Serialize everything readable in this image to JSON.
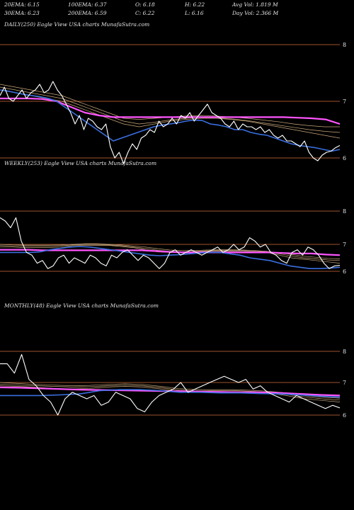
{
  "header": {
    "row1": [
      "20EMA: 6.15",
      "100EMA: 6.37",
      "O: 6.18",
      "H: 6.22",
      "Avg Vol: 1.819 M"
    ],
    "row2": [
      "30EMA: 6.23",
      "200EMA: 6.59",
      "C: 6.22",
      "L: 6.16",
      "Day Vol: 2.366  M"
    ]
  },
  "colors": {
    "background": "#000000",
    "price": "#ffffff",
    "ema_short": "#3a6fe0",
    "ema_long": "#ff55ff",
    "ma_lines": "#c8a77a",
    "grid": "#a0522d"
  },
  "chart_data": [
    {
      "type": "line",
      "title": "DAILY(250) Eagle  View  USA charts MunafaSutra.com",
      "yticks": [
        6,
        7,
        8
      ],
      "ylim": [
        5.88,
        8.02
      ],
      "series": [
        {
          "role": "price",
          "values": [
            7.1,
            7.25,
            7.05,
            7.0,
            7.1,
            7.2,
            7.05,
            7.15,
            7.2,
            7.3,
            7.15,
            7.2,
            7.35,
            7.2,
            7.1,
            6.95,
            6.8,
            6.6,
            6.75,
            6.5,
            6.7,
            6.65,
            6.55,
            6.5,
            6.6,
            6.2,
            6.0,
            6.1,
            5.9,
            6.1,
            6.25,
            6.15,
            6.35,
            6.4,
            6.5,
            6.45,
            6.65,
            6.55,
            6.6,
            6.7,
            6.6,
            6.75,
            6.7,
            6.8,
            6.65,
            6.75,
            6.85,
            6.95,
            6.8,
            6.75,
            6.7,
            6.6,
            6.55,
            6.65,
            6.5,
            6.6,
            6.55,
            6.55,
            6.5,
            6.55,
            6.45,
            6.5,
            6.4,
            6.35,
            6.4,
            6.3,
            6.3,
            6.25,
            6.2,
            6.3,
            6.1,
            6.0,
            5.95,
            6.05,
            6.1,
            6.12,
            6.18,
            6.22
          ]
        },
        {
          "role": "ema_short",
          "values": [
            7.2,
            7.18,
            7.15,
            7.12,
            7.1,
            7.08,
            7.05,
            7.0,
            6.9,
            6.8,
            6.7,
            6.6,
            6.5,
            6.4,
            6.3,
            6.35,
            6.4,
            6.45,
            6.5,
            6.55,
            6.58,
            6.6,
            6.62,
            6.65,
            6.67,
            6.66,
            6.6,
            6.58,
            6.55,
            6.5,
            6.5,
            6.45,
            6.42,
            6.4,
            6.35,
            6.3,
            6.25,
            6.22,
            6.2,
            6.18,
            6.15,
            6.12,
            6.15
          ]
        },
        {
          "role": "ema_long",
          "values": [
            7.05,
            7.05,
            7.05,
            7.04,
            7.0,
            6.9,
            6.8,
            6.75,
            6.72,
            6.72,
            6.72,
            6.72,
            6.72,
            6.72,
            6.72,
            6.72,
            6.72,
            6.72,
            6.72,
            6.72,
            6.72,
            6.71,
            6.7,
            6.68,
            6.6
          ]
        },
        {
          "role": "ma_lines",
          "values": [
            7.2,
            7.15,
            7.1,
            7.05,
            7.0,
            6.9,
            6.8,
            6.7,
            6.6,
            6.55,
            6.6,
            6.65,
            6.68,
            6.7,
            6.7,
            6.68,
            6.65,
            6.6,
            6.55,
            6.5,
            6.45,
            6.4,
            6.35
          ]
        },
        {
          "role": "ma_lines",
          "values": [
            7.25,
            7.2,
            7.15,
            7.1,
            7.05,
            6.95,
            6.85,
            6.75,
            6.65,
            6.6,
            6.63,
            6.67,
            6.7,
            6.72,
            6.71,
            6.69,
            6.66,
            6.62,
            6.58,
            6.54,
            6.5,
            6.47,
            6.45
          ]
        },
        {
          "role": "ma_lines",
          "values": [
            7.3,
            7.25,
            7.2,
            7.15,
            7.1,
            7.0,
            6.9,
            6.8,
            6.7,
            6.68,
            6.7,
            6.72,
            6.74,
            6.75,
            6.74,
            6.72,
            6.7,
            6.67,
            6.64,
            6.6,
            6.57,
            6.55,
            6.55
          ]
        }
      ]
    },
    {
      "type": "line",
      "title": "WEEKLY(253) Eagle  View  USA charts MunafaSutra.com",
      "yticks": [
        6,
        7,
        8
      ],
      "ylim": [
        5.88,
        8.02
      ],
      "series": [
        {
          "role": "price",
          "values": [
            7.8,
            7.7,
            7.5,
            7.8,
            7.1,
            6.7,
            6.6,
            6.3,
            6.4,
            6.1,
            6.2,
            6.5,
            6.6,
            6.3,
            6.5,
            6.4,
            6.3,
            6.6,
            6.5,
            6.3,
            6.2,
            6.6,
            6.5,
            6.7,
            6.8,
            6.6,
            6.4,
            6.6,
            6.5,
            6.3,
            6.1,
            6.3,
            6.7,
            6.8,
            6.6,
            6.7,
            6.8,
            6.7,
            6.6,
            6.7,
            6.8,
            6.9,
            6.7,
            6.8,
            7.0,
            6.8,
            6.9,
            7.2,
            7.1,
            6.9,
            7.0,
            6.7,
            6.6,
            6.4,
            6.3,
            6.7,
            6.8,
            6.6,
            6.9,
            6.8,
            6.6,
            6.3,
            6.1,
            6.2,
            6.22
          ]
        },
        {
          "role": "ema_short",
          "values": [
            6.7,
            6.7,
            6.7,
            6.7,
            6.72,
            6.8,
            6.85,
            6.9,
            6.92,
            6.9,
            6.85,
            6.8,
            6.75,
            6.7,
            6.65,
            6.6,
            6.58,
            6.6,
            6.62,
            6.65,
            6.68,
            6.7,
            6.7,
            6.65,
            6.6,
            6.5,
            6.45,
            6.4,
            6.3,
            6.2,
            6.15,
            6.1,
            6.1,
            6.12,
            6.15
          ]
        },
        {
          "role": "ema_long",
          "values": [
            6.8,
            6.8,
            6.8,
            6.78,
            6.78,
            6.78,
            6.78,
            6.78,
            6.78,
            6.78,
            6.78,
            6.75,
            6.72,
            6.7,
            6.7,
            6.7,
            6.7,
            6.7,
            6.7,
            6.7,
            6.68,
            6.66,
            6.66,
            6.62,
            6.6
          ]
        },
        {
          "role": "ma_lines",
          "values": [
            6.9,
            6.9,
            6.88,
            6.88,
            6.88,
            6.9,
            6.95,
            6.96,
            6.96,
            6.96,
            6.92,
            6.88,
            6.8,
            6.72,
            6.7,
            6.7,
            6.72,
            6.74,
            6.75,
            6.75,
            6.74,
            6.72,
            6.7,
            6.6,
            6.5,
            6.45,
            6.4,
            6.35,
            6.3
          ]
        },
        {
          "role": "ma_lines",
          "values": [
            6.95,
            6.94,
            6.93,
            6.93,
            6.93,
            6.95,
            6.98,
            7.0,
            7.0,
            6.98,
            6.95,
            6.9,
            6.85,
            6.78,
            6.74,
            6.73,
            6.74,
            6.76,
            6.78,
            6.78,
            6.77,
            6.75,
            6.72,
            6.65,
            6.57,
            6.5,
            6.46,
            6.42,
            6.4
          ]
        },
        {
          "role": "ma_lines",
          "values": [
            7.0,
            6.98,
            6.97,
            6.97,
            6.97,
            6.98,
            7.0,
            7.02,
            7.02,
            7.0,
            6.98,
            6.94,
            6.9,
            6.84,
            6.79,
            6.77,
            6.77,
            6.79,
            6.8,
            6.8,
            6.79,
            6.77,
            6.74,
            6.69,
            6.63,
            6.56,
            6.52,
            6.48,
            6.46
          ]
        }
      ]
    },
    {
      "type": "line",
      "title": "MONTHLY(48) Eagle  View  USA charts MunafaSutra.com",
      "yticks": [
        6,
        7,
        8
      ],
      "ylim": [
        5.88,
        8.02
      ],
      "series": [
        {
          "role": "price",
          "values": [
            7.6,
            7.6,
            7.3,
            7.9,
            7.1,
            6.9,
            6.6,
            6.4,
            6.0,
            6.5,
            6.7,
            6.6,
            6.5,
            6.6,
            6.3,
            6.4,
            6.7,
            6.6,
            6.5,
            6.2,
            6.1,
            6.4,
            6.6,
            6.7,
            6.8,
            7.0,
            6.7,
            6.8,
            6.9,
            7.0,
            7.1,
            7.2,
            7.1,
            7.0,
            7.1,
            6.8,
            6.9,
            6.7,
            6.6,
            6.5,
            6.4,
            6.6,
            6.5,
            6.4,
            6.3,
            6.2,
            6.3,
            6.22
          ]
        },
        {
          "role": "ema_short",
          "values": [
            6.6,
            6.6,
            6.6,
            6.62,
            6.65,
            6.75,
            6.78,
            6.78,
            6.75,
            6.7,
            6.7,
            6.68,
            6.68,
            6.66,
            6.65,
            6.62,
            6.58,
            6.55
          ]
        },
        {
          "role": "ema_long",
          "values": [
            6.85,
            6.84,
            6.82,
            6.8,
            6.78,
            6.77,
            6.76,
            6.75,
            6.74,
            6.73,
            6.72,
            6.71,
            6.7,
            6.7,
            6.68,
            6.65,
            6.62,
            6.6
          ]
        },
        {
          "role": "ma_lines",
          "values": [
            6.9,
            6.88,
            6.85,
            6.82,
            6.8,
            6.82,
            6.86,
            6.88,
            6.86,
            6.8,
            6.72,
            6.7,
            6.72,
            6.72,
            6.7,
            6.68,
            6.6,
            6.5,
            6.45,
            6.4
          ]
        },
        {
          "role": "ma_lines",
          "values": [
            6.95,
            6.92,
            6.9,
            6.88,
            6.86,
            6.87,
            6.9,
            6.92,
            6.9,
            6.84,
            6.77,
            6.74,
            6.75,
            6.75,
            6.73,
            6.7,
            6.64,
            6.56,
            6.5,
            6.46
          ]
        },
        {
          "role": "ma_lines",
          "values": [
            7.0,
            6.97,
            6.94,
            6.92,
            6.9,
            6.91,
            6.94,
            6.96,
            6.94,
            6.88,
            6.81,
            6.78,
            6.78,
            6.78,
            6.76,
            6.73,
            6.68,
            6.6,
            6.55,
            6.52
          ]
        }
      ]
    }
  ]
}
